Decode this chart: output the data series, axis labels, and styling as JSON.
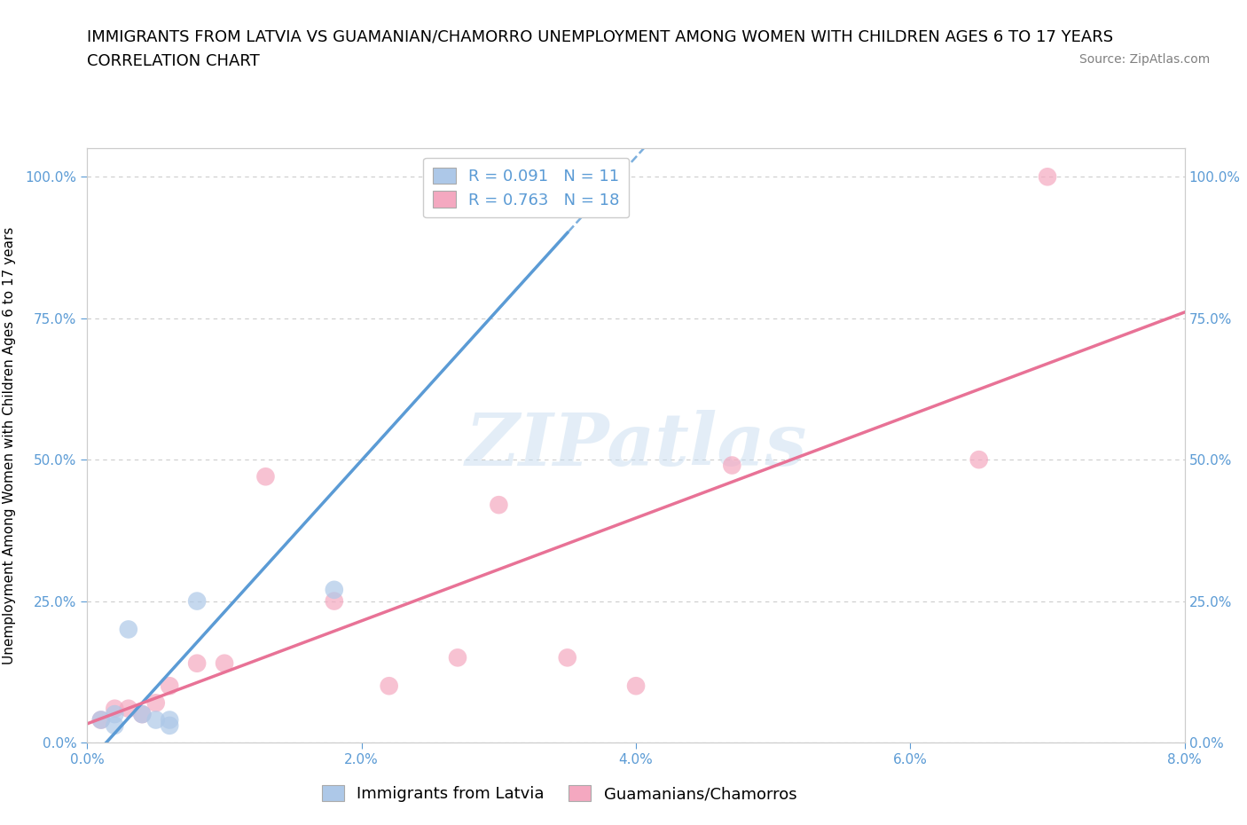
{
  "title_line1": "IMMIGRANTS FROM LATVIA VS GUAMANIAN/CHAMORRO UNEMPLOYMENT AMONG WOMEN WITH CHILDREN AGES 6 TO 17 YEARS",
  "title_line2": "CORRELATION CHART",
  "source": "Source: ZipAtlas.com",
  "ylabel": "Unemployment Among Women with Children Ages 6 to 17 years",
  "xlim": [
    0.0,
    0.08
  ],
  "ylim": [
    0.0,
    1.05
  ],
  "xtick_vals": [
    0.0,
    0.02,
    0.04,
    0.06,
    0.08
  ],
  "xtick_labels": [
    "0.0%",
    "2.0%",
    "4.0%",
    "6.0%",
    "8.0%"
  ],
  "ytick_vals": [
    0.0,
    0.25,
    0.5,
    0.75,
    1.0
  ],
  "ytick_labels": [
    "0.0%",
    "25.0%",
    "50.0%",
    "75.0%",
    "100.0%"
  ],
  "latvia_color": "#adc8e8",
  "chamorro_color": "#f4a8c0",
  "latvia_line_color": "#5b9bd5",
  "chamorro_line_color": "#e87296",
  "latvia_R": 0.091,
  "latvia_N": 11,
  "chamorro_R": 0.763,
  "chamorro_N": 18,
  "latvia_scatter_x": [
    0.001,
    0.002,
    0.002,
    0.003,
    0.004,
    0.005,
    0.006,
    0.006,
    0.008,
    0.018,
    0.033
  ],
  "latvia_scatter_y": [
    0.04,
    0.05,
    0.03,
    0.2,
    0.05,
    0.04,
    0.03,
    0.04,
    0.25,
    0.27,
    0.95
  ],
  "chamorro_scatter_x": [
    0.001,
    0.002,
    0.003,
    0.004,
    0.005,
    0.006,
    0.008,
    0.01,
    0.013,
    0.018,
    0.022,
    0.027,
    0.03,
    0.035,
    0.04,
    0.047,
    0.065,
    0.07
  ],
  "chamorro_scatter_y": [
    0.04,
    0.06,
    0.06,
    0.05,
    0.07,
    0.1,
    0.14,
    0.14,
    0.47,
    0.25,
    0.1,
    0.15,
    0.42,
    0.15,
    0.1,
    0.49,
    0.5,
    1.0
  ],
  "watermark": "ZIPatlas",
  "background_color": "#ffffff",
  "grid_color": "#cccccc",
  "title_fontsize": 13,
  "subtitle_fontsize": 13,
  "axis_label_fontsize": 11,
  "tick_fontsize": 11,
  "legend_fontsize": 13,
  "source_fontsize": 10,
  "scatter_size": 220,
  "tick_color": "#5b9bd5",
  "legend_text_color": "#5b9bd5"
}
